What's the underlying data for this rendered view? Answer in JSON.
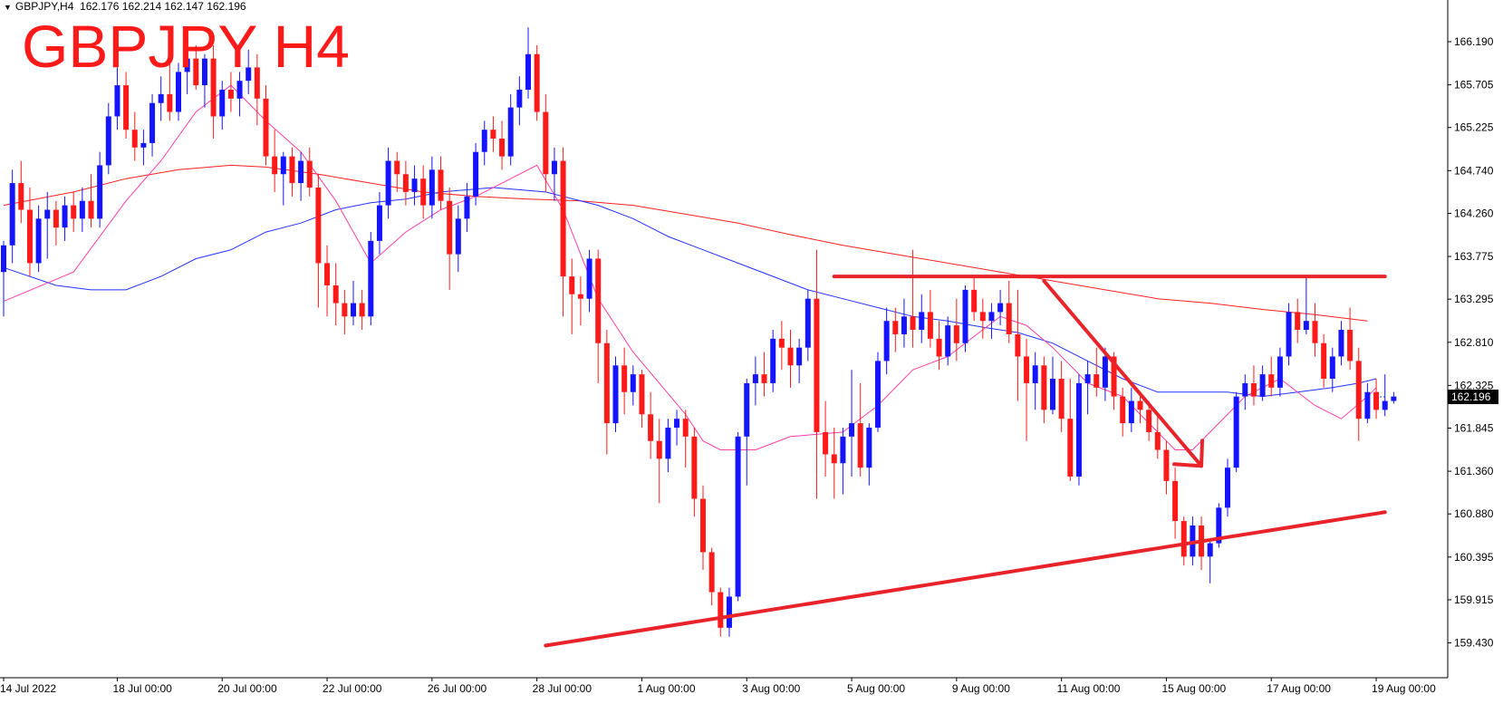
{
  "header": {
    "symbol_line": "GBPJPY,H4",
    "ohlc": "162.176 162.214 162.147 162.196"
  },
  "overlay_title": "GBPJPY H4",
  "colors": {
    "bull": "#1414ff",
    "bear": "#ff1a1a",
    "ma_fast": "#ff3fa8",
    "ma_mid": "#2233ff",
    "ma_slow": "#ff2020",
    "annotation": "#e8232a",
    "axis": "#000000",
    "price_tag_bg": "#000000"
  },
  "chart_data": {
    "type": "candlestick",
    "symbol": "GBPJPY",
    "timeframe": "H4",
    "ylim": [
      159.25,
      166.6
    ],
    "y_ticks": [
      "166.190",
      "165.705",
      "165.225",
      "164.740",
      "164.260",
      "163.775",
      "163.295",
      "162.810",
      "162.325",
      "161.845",
      "161.360",
      "160.880",
      "160.395",
      "159.915",
      "159.430"
    ],
    "x_ticks": [
      {
        "label": "14 Jul 2022",
        "bar": 0
      },
      {
        "label": "18 Jul 00:00",
        "bar": 13
      },
      {
        "label": "20 Jul 00:00",
        "bar": 25
      },
      {
        "label": "22 Jul 00:00",
        "bar": 37
      },
      {
        "label": "26 Jul 00:00",
        "bar": 49
      },
      {
        "label": "28 Jul 00:00",
        "bar": 61
      },
      {
        "label": "1 Aug 00:00",
        "bar": 73
      },
      {
        "label": "3 Aug 00:00",
        "bar": 85
      },
      {
        "label": "5 Aug 00:00",
        "bar": 97
      },
      {
        "label": "9 Aug 00:00",
        "bar": 109
      },
      {
        "label": "11 Aug 00:00",
        "bar": 121
      },
      {
        "label": "15 Aug 00:00",
        "bar": 133
      },
      {
        "label": "17 Aug 00:00",
        "bar": 145
      },
      {
        "label": "19 Aug 00:00",
        "bar": 157
      }
    ],
    "current_price": "162.196",
    "candles": [
      [
        163.6,
        163.95,
        163.1,
        163.9
      ],
      [
        163.9,
        164.75,
        163.7,
        164.6
      ],
      [
        164.6,
        164.85,
        164.15,
        164.3
      ],
      [
        164.3,
        164.55,
        163.55,
        163.7
      ],
      [
        163.7,
        164.35,
        163.6,
        164.2
      ],
      [
        164.2,
        164.5,
        163.75,
        164.3
      ],
      [
        164.3,
        164.4,
        163.9,
        164.1
      ],
      [
        164.1,
        164.45,
        163.95,
        164.35
      ],
      [
        164.35,
        164.5,
        164.05,
        164.2
      ],
      [
        164.2,
        164.55,
        164.05,
        164.4
      ],
      [
        164.4,
        164.7,
        164.1,
        164.2
      ],
      [
        164.2,
        164.95,
        164.1,
        164.8
      ],
      [
        164.8,
        165.5,
        164.7,
        165.35
      ],
      [
        165.35,
        165.9,
        165.2,
        165.7
      ],
      [
        165.7,
        165.85,
        165.1,
        165.2
      ],
      [
        165.2,
        165.4,
        164.85,
        165.0
      ],
      [
        165.0,
        165.2,
        164.8,
        165.05
      ],
      [
        165.05,
        165.6,
        164.9,
        165.5
      ],
      [
        165.5,
        165.8,
        165.3,
        165.6
      ],
      [
        165.6,
        166.1,
        165.3,
        165.4
      ],
      [
        165.4,
        165.95,
        165.3,
        165.85
      ],
      [
        165.85,
        166.1,
        165.6,
        166.0
      ],
      [
        166.0,
        166.15,
        165.65,
        165.7
      ],
      [
        165.7,
        166.05,
        165.45,
        166.0
      ],
      [
        166.0,
        166.15,
        165.1,
        165.35
      ],
      [
        165.35,
        165.75,
        165.2,
        165.65
      ],
      [
        165.65,
        165.85,
        165.4,
        165.55
      ],
      [
        165.55,
        165.85,
        165.35,
        165.75
      ],
      [
        165.75,
        166.1,
        165.6,
        165.9
      ],
      [
        165.9,
        166.05,
        165.25,
        165.55
      ],
      [
        165.55,
        165.7,
        164.8,
        164.9
      ],
      [
        164.9,
        165.2,
        164.5,
        164.7
      ],
      [
        164.7,
        164.95,
        164.35,
        164.9
      ],
      [
        164.9,
        165.0,
        164.45,
        164.6
      ],
      [
        164.6,
        164.95,
        164.4,
        164.85
      ],
      [
        164.85,
        165.0,
        164.45,
        164.55
      ],
      [
        164.55,
        164.7,
        163.2,
        163.7
      ],
      [
        163.7,
        163.9,
        163.1,
        163.45
      ],
      [
        163.45,
        163.7,
        163.0,
        163.25
      ],
      [
        163.25,
        163.4,
        162.9,
        163.1
      ],
      [
        163.1,
        163.5,
        163.0,
        163.25
      ],
      [
        163.25,
        163.4,
        162.95,
        163.1
      ],
      [
        163.1,
        164.05,
        163.0,
        163.95
      ],
      [
        163.95,
        164.5,
        163.8,
        164.35
      ],
      [
        164.35,
        165.0,
        164.2,
        164.85
      ],
      [
        164.85,
        164.95,
        164.5,
        164.7
      ],
      [
        164.7,
        164.85,
        164.35,
        164.5
      ],
      [
        164.5,
        164.8,
        164.35,
        164.65
      ],
      [
        164.65,
        164.8,
        164.2,
        164.35
      ],
      [
        164.35,
        164.9,
        164.2,
        164.75
      ],
      [
        164.75,
        164.9,
        164.3,
        164.4
      ],
      [
        164.4,
        164.55,
        163.4,
        163.8
      ],
      [
        163.8,
        164.35,
        163.6,
        164.2
      ],
      [
        164.2,
        164.6,
        164.05,
        164.45
      ],
      [
        164.45,
        165.05,
        164.35,
        164.95
      ],
      [
        164.95,
        165.3,
        164.8,
        165.2
      ],
      [
        165.2,
        165.35,
        164.95,
        165.1
      ],
      [
        165.1,
        165.3,
        164.75,
        164.9
      ],
      [
        164.9,
        165.6,
        164.8,
        165.45
      ],
      [
        165.45,
        165.8,
        165.25,
        165.65
      ],
      [
        165.65,
        166.35,
        165.55,
        166.05
      ],
      [
        166.05,
        166.15,
        165.3,
        165.4
      ],
      [
        165.4,
        165.6,
        164.5,
        164.7
      ],
      [
        164.7,
        165.0,
        164.4,
        164.85
      ],
      [
        164.85,
        165.0,
        163.1,
        163.55
      ],
      [
        163.55,
        163.75,
        162.9,
        163.35
      ],
      [
        163.35,
        163.55,
        163.0,
        163.3
      ],
      [
        163.3,
        163.85,
        163.15,
        163.75
      ],
      [
        163.75,
        163.85,
        162.35,
        162.8
      ],
      [
        162.8,
        162.95,
        161.55,
        161.9
      ],
      [
        161.9,
        162.65,
        161.8,
        162.55
      ],
      [
        162.55,
        162.75,
        162.0,
        162.25
      ],
      [
        162.25,
        162.55,
        162.1,
        162.45
      ],
      [
        162.45,
        162.5,
        161.85,
        162.0
      ],
      [
        162.0,
        162.25,
        161.5,
        161.7
      ],
      [
        161.7,
        161.95,
        161.0,
        161.5
      ],
      [
        161.5,
        161.95,
        161.35,
        161.85
      ],
      [
        161.85,
        162.05,
        161.65,
        161.95
      ],
      [
        161.95,
        162.05,
        161.4,
        161.75
      ],
      [
        161.75,
        161.85,
        160.85,
        161.05
      ],
      [
        161.05,
        161.2,
        160.25,
        160.45
      ],
      [
        160.45,
        160.5,
        159.85,
        160.0
      ],
      [
        160.0,
        160.05,
        159.5,
        159.6
      ],
      [
        159.6,
        160.05,
        159.5,
        159.95
      ],
      [
        159.95,
        161.8,
        159.9,
        161.75
      ],
      [
        161.75,
        162.4,
        161.2,
        162.35
      ],
      [
        162.35,
        162.65,
        162.1,
        162.45
      ],
      [
        162.45,
        162.7,
        162.2,
        162.35
      ],
      [
        162.35,
        162.95,
        162.25,
        162.85
      ],
      [
        162.85,
        163.05,
        162.5,
        162.75
      ],
      [
        162.75,
        162.95,
        162.3,
        162.55
      ],
      [
        162.55,
        162.85,
        162.35,
        162.75
      ],
      [
        162.75,
        163.4,
        162.6,
        163.3
      ],
      [
        163.3,
        163.85,
        161.05,
        161.8
      ],
      [
        161.8,
        162.15,
        161.3,
        161.55
      ],
      [
        161.55,
        161.85,
        161.05,
        161.45
      ],
      [
        161.45,
        161.85,
        161.1,
        161.75
      ],
      [
        161.75,
        162.5,
        161.3,
        161.9
      ],
      [
        161.9,
        162.35,
        161.3,
        161.4
      ],
      [
        161.4,
        161.9,
        161.2,
        161.85
      ],
      [
        161.85,
        162.7,
        161.8,
        162.6
      ],
      [
        162.6,
        163.2,
        162.45,
        163.05
      ],
      [
        163.05,
        163.2,
        162.7,
        162.9
      ],
      [
        162.9,
        163.3,
        162.75,
        163.1
      ],
      [
        163.1,
        163.85,
        162.75,
        162.95
      ],
      [
        162.95,
        163.35,
        162.8,
        163.15
      ],
      [
        163.15,
        163.4,
        162.75,
        162.85
      ],
      [
        162.85,
        163.05,
        162.5,
        162.65
      ],
      [
        162.65,
        163.1,
        162.55,
        163.0
      ],
      [
        163.0,
        163.3,
        162.6,
        162.8
      ],
      [
        162.8,
        163.45,
        162.7,
        163.4
      ],
      [
        163.4,
        163.55,
        163.05,
        163.15
      ],
      [
        163.15,
        163.3,
        162.85,
        163.05
      ],
      [
        163.05,
        163.25,
        162.85,
        163.15
      ],
      [
        163.15,
        163.4,
        163.0,
        163.25
      ],
      [
        163.25,
        163.5,
        162.8,
        162.9
      ],
      [
        162.9,
        163.4,
        162.15,
        162.65
      ],
      [
        162.65,
        162.85,
        161.7,
        162.35
      ],
      [
        162.35,
        162.7,
        162.05,
        162.55
      ],
      [
        162.55,
        162.65,
        161.9,
        162.05
      ],
      [
        162.05,
        162.65,
        162.0,
        162.4
      ],
      [
        162.4,
        162.6,
        161.8,
        161.95
      ],
      [
        161.95,
        162.4,
        161.25,
        161.3
      ],
      [
        161.3,
        162.45,
        161.2,
        162.35
      ],
      [
        162.35,
        162.6,
        162.0,
        162.45
      ],
      [
        162.45,
        162.75,
        162.2,
        162.3
      ],
      [
        162.3,
        162.75,
        162.15,
        162.65
      ],
      [
        162.65,
        162.7,
        162.05,
        162.2
      ],
      [
        162.2,
        162.3,
        161.75,
        161.9
      ],
      [
        161.9,
        162.3,
        161.8,
        162.15
      ],
      [
        162.15,
        162.25,
        161.9,
        162.05
      ],
      [
        162.05,
        162.15,
        161.7,
        161.8
      ],
      [
        161.8,
        162.0,
        161.5,
        161.6
      ],
      [
        161.6,
        161.7,
        161.1,
        161.25
      ],
      [
        161.25,
        161.4,
        160.6,
        160.8
      ],
      [
        160.8,
        160.85,
        160.3,
        160.4
      ],
      [
        160.4,
        160.85,
        160.3,
        160.75
      ],
      [
        160.75,
        160.85,
        160.25,
        160.4
      ],
      [
        160.4,
        160.6,
        160.1,
        160.55
      ],
      [
        160.55,
        161.0,
        160.5,
        160.95
      ],
      [
        160.95,
        161.5,
        160.85,
        161.4
      ],
      [
        161.4,
        162.25,
        161.35,
        162.2
      ],
      [
        162.2,
        162.45,
        162.05,
        162.35
      ],
      [
        162.35,
        162.55,
        162.1,
        162.2
      ],
      [
        162.2,
        162.55,
        162.15,
        162.45
      ],
      [
        162.45,
        162.65,
        162.2,
        162.3
      ],
      [
        162.3,
        162.75,
        162.2,
        162.65
      ],
      [
        162.65,
        163.25,
        162.55,
        163.15
      ],
      [
        163.15,
        163.3,
        162.8,
        162.95
      ],
      [
        162.95,
        163.55,
        162.9,
        163.05
      ],
      [
        163.05,
        163.25,
        162.65,
        162.8
      ],
      [
        162.8,
        162.9,
        162.3,
        162.4
      ],
      [
        162.4,
        162.75,
        162.25,
        162.65
      ],
      [
        162.65,
        163.05,
        162.55,
        162.95
      ],
      [
        162.95,
        163.2,
        162.5,
        162.6
      ],
      [
        162.6,
        162.75,
        161.7,
        161.95
      ],
      [
        161.95,
        162.35,
        161.9,
        162.25
      ],
      [
        162.25,
        162.4,
        161.95,
        162.05
      ],
      [
        162.05,
        162.45,
        161.98,
        162.15
      ],
      [
        162.15,
        162.25,
        162.12,
        162.2
      ]
    ],
    "ma_fast": [
      [
        0,
        163.27
      ],
      [
        8,
        163.6
      ],
      [
        14,
        164.4
      ],
      [
        18,
        164.85
      ],
      [
        22,
        165.4
      ],
      [
        26,
        165.7
      ],
      [
        30,
        165.3
      ],
      [
        34,
        164.95
      ],
      [
        38,
        164.4
      ],
      [
        42,
        163.7
      ],
      [
        46,
        164.05
      ],
      [
        50,
        164.3
      ],
      [
        54,
        164.45
      ],
      [
        58,
        164.65
      ],
      [
        61,
        164.8
      ],
      [
        64,
        164.3
      ],
      [
        68,
        163.3
      ],
      [
        72,
        162.7
      ],
      [
        78,
        162.0
      ],
      [
        80,
        161.7
      ],
      [
        82,
        161.6
      ],
      [
        86,
        161.6
      ],
      [
        90,
        161.75
      ],
      [
        96,
        161.8
      ],
      [
        100,
        162.1
      ],
      [
        104,
        162.5
      ],
      [
        108,
        162.65
      ],
      [
        112,
        162.95
      ],
      [
        114,
        163.1
      ],
      [
        117,
        163.0
      ],
      [
        120,
        162.75
      ],
      [
        124,
        162.35
      ],
      [
        128,
        162.2
      ],
      [
        132,
        161.8
      ],
      [
        134,
        161.6
      ],
      [
        136,
        161.6
      ],
      [
        138,
        161.8
      ],
      [
        142,
        162.2
      ],
      [
        146,
        162.4
      ],
      [
        150,
        162.1
      ],
      [
        153,
        161.95
      ],
      [
        156,
        162.2
      ],
      [
        157,
        162.3
      ]
    ],
    "ma_mid": [
      [
        0,
        163.65
      ],
      [
        6,
        163.45
      ],
      [
        10,
        163.4
      ],
      [
        14,
        163.4
      ],
      [
        18,
        163.55
      ],
      [
        22,
        163.75
      ],
      [
        26,
        163.85
      ],
      [
        30,
        164.05
      ],
      [
        34,
        164.15
      ],
      [
        38,
        164.3
      ],
      [
        42,
        164.38
      ],
      [
        46,
        164.42
      ],
      [
        50,
        164.5
      ],
      [
        56,
        164.55
      ],
      [
        62,
        164.5
      ],
      [
        68,
        164.35
      ],
      [
        72,
        164.2
      ],
      [
        76,
        164.0
      ],
      [
        80,
        163.85
      ],
      [
        84,
        163.7
      ],
      [
        88,
        163.55
      ],
      [
        92,
        163.4
      ],
      [
        96,
        163.3
      ],
      [
        100,
        163.2
      ],
      [
        104,
        163.1
      ],
      [
        108,
        163.05
      ],
      [
        112,
        162.98
      ],
      [
        116,
        162.92
      ],
      [
        120,
        162.8
      ],
      [
        124,
        162.6
      ],
      [
        128,
        162.4
      ],
      [
        132,
        162.25
      ],
      [
        136,
        162.25
      ],
      [
        140,
        162.25
      ],
      [
        144,
        162.2
      ],
      [
        148,
        162.25
      ],
      [
        152,
        162.3
      ],
      [
        155,
        162.35
      ],
      [
        157,
        162.4
      ]
    ],
    "ma_slow": [
      [
        0,
        164.35
      ],
      [
        8,
        164.5
      ],
      [
        14,
        164.65
      ],
      [
        20,
        164.75
      ],
      [
        26,
        164.8
      ],
      [
        30,
        164.78
      ],
      [
        36,
        164.7
      ],
      [
        42,
        164.6
      ],
      [
        48,
        164.5
      ],
      [
        54,
        164.45
      ],
      [
        60,
        164.42
      ],
      [
        66,
        164.4
      ],
      [
        72,
        164.35
      ],
      [
        78,
        164.25
      ],
      [
        84,
        164.15
      ],
      [
        90,
        164.02
      ],
      [
        96,
        163.9
      ],
      [
        102,
        163.8
      ],
      [
        108,
        163.7
      ],
      [
        114,
        163.6
      ],
      [
        120,
        163.5
      ],
      [
        126,
        163.4
      ],
      [
        132,
        163.3
      ],
      [
        138,
        163.25
      ],
      [
        144,
        163.18
      ],
      [
        150,
        163.12
      ],
      [
        156,
        163.05
      ]
    ],
    "annotations": [
      {
        "kind": "resistance-line",
        "from": [
          95,
          163.55
        ],
        "to": [
          158,
          163.55
        ]
      },
      {
        "kind": "support-trendline",
        "from": [
          62,
          159.4
        ],
        "to": [
          158,
          160.9
        ]
      },
      {
        "kind": "down-arrow",
        "from": [
          119,
          163.5
        ],
        "to": [
          137,
          161.42
        ]
      }
    ]
  }
}
